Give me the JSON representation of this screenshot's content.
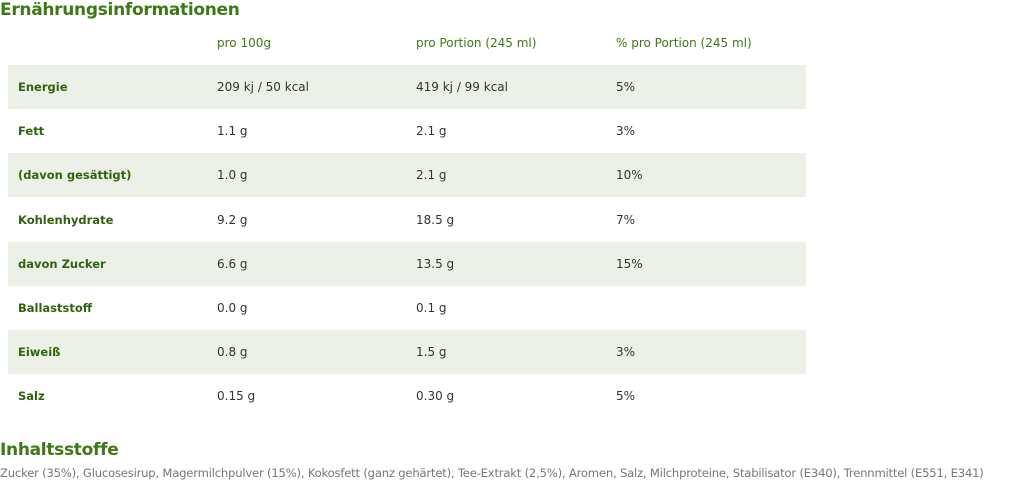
{
  "header": {
    "title": "Ernährungsinformationen"
  },
  "table": {
    "columns": [
      "pro 100g",
      "pro Portion (245 ml)",
      "% pro Portion (245 ml)"
    ],
    "rows": [
      [
        "Energie",
        "209 kj / 50 kcal",
        "419 kj / 99 kcal",
        "5%"
      ],
      [
        "Fett",
        "1.1 g",
        "2.1 g",
        "3%"
      ],
      [
        "(davon gesättigt)",
        "1.0 g",
        "2.1 g",
        "10%"
      ],
      [
        "Kohlenhydrate",
        "9.2 g",
        "18.5 g",
        "7%"
      ],
      [
        "davon Zucker",
        "6.6 g",
        "13.5 g",
        "15%"
      ],
      [
        "Ballaststoff",
        "0.0 g",
        "0.1 g"
      ],
      [
        "Eiweiß",
        "0.8 g",
        "1.5 g",
        "3%"
      ],
      [
        "Salz",
        "0.15 g",
        "0.30 g",
        "5%"
      ]
    ]
  },
  "ingredients": {
    "title": "Inhaltsstoffe",
    "text": "Zucker (35%), Glucosesirup, Magermilchpulver (15%), Kokosfett (ganz gehärtet), Tee-Extrakt (2,5%), Aromen, Salz, Milchproteine, Stabilisator (E340), Trennmittel (E551, E341)"
  }
}
